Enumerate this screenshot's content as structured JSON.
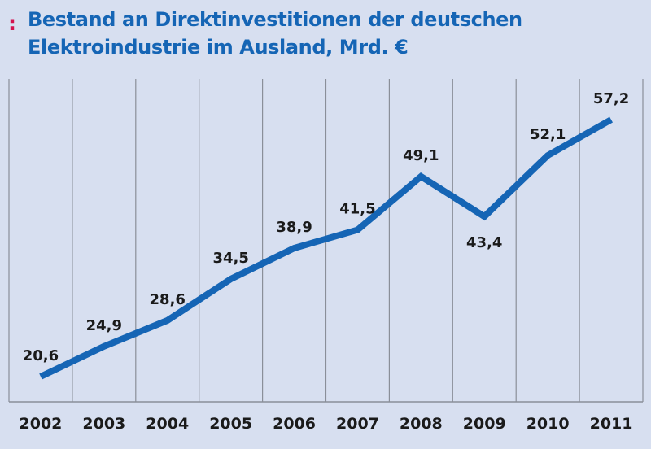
{
  "title_marker": ":",
  "title": {
    "line1": "Bestand an Direktinvestitionen der deutschen",
    "line2": "Elektroindustrie im Ausland, Mrd. €"
  },
  "colors": {
    "background": "#d7dff0",
    "line": "#1565b5",
    "title": "#1565b5",
    "marker": "#d4124e",
    "grid": "#8a8f99",
    "text": "#1a1a1a"
  },
  "chart_data": {
    "type": "line",
    "categories": [
      "2002",
      "2003",
      "2004",
      "2005",
      "2006",
      "2007",
      "2008",
      "2009",
      "2010",
      "2011"
    ],
    "values": [
      20.6,
      24.9,
      28.6,
      34.5,
      38.9,
      41.5,
      49.1,
      43.4,
      52.1,
      57.2
    ],
    "value_labels": [
      "20,6",
      "24,9",
      "28,6",
      "34,5",
      "38,9",
      "41,5",
      "49,1",
      "43,4",
      "52,1",
      "57,2"
    ],
    "title": "Bestand an Direktinvestitionen der deutschen Elektroindustrie im Ausland, Mrd. €",
    "xlabel": "",
    "ylabel": "",
    "ylim": [
      17,
      63
    ],
    "grid": "vertical",
    "legend": "none"
  }
}
